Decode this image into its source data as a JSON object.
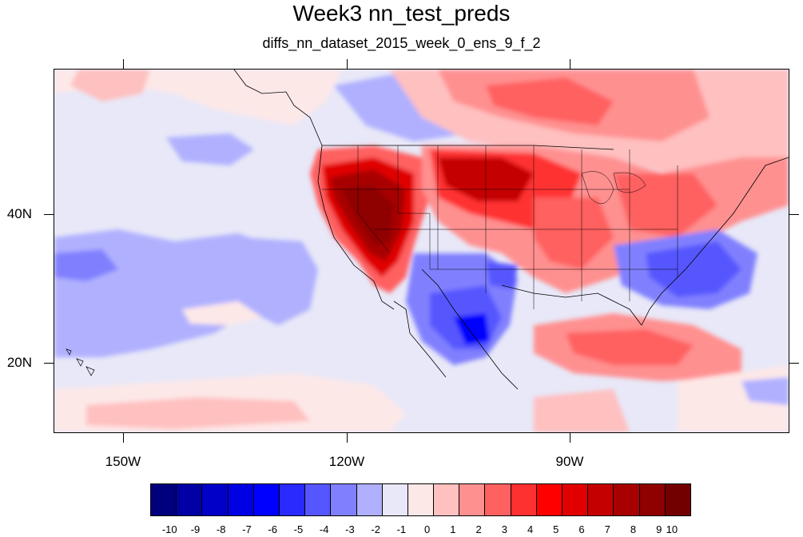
{
  "title": "Week3 nn_test_preds",
  "subtitle": "diffs_nn_dataset_2015_week_0_ens_9_f_2",
  "axes": {
    "lat_labels": [
      "40N",
      "20N"
    ],
    "lon_labels": [
      "150W",
      "120W",
      "90W"
    ]
  },
  "colorbar": {
    "labels": [
      "-10",
      "-9",
      "-8",
      "-7",
      "-6",
      "-5",
      "-4",
      "-3",
      "-2",
      "-1",
      "0",
      "1",
      "2",
      "3",
      "4",
      "5",
      "6",
      "7",
      "8",
      "9",
      "10"
    ],
    "colors": [
      "#00007f",
      "#0000a5",
      "#0000c8",
      "#0000e5",
      "#0000ff",
      "#2a2aff",
      "#5656ff",
      "#8080ff",
      "#b0b0ff",
      "#e8e8f8",
      "#fde8e8",
      "#ffc0c0",
      "#ff9090",
      "#ff6060",
      "#ff3030",
      "#ff0000",
      "#e00000",
      "#c50000",
      "#a80000",
      "#8f0000",
      "#720000"
    ]
  }
}
